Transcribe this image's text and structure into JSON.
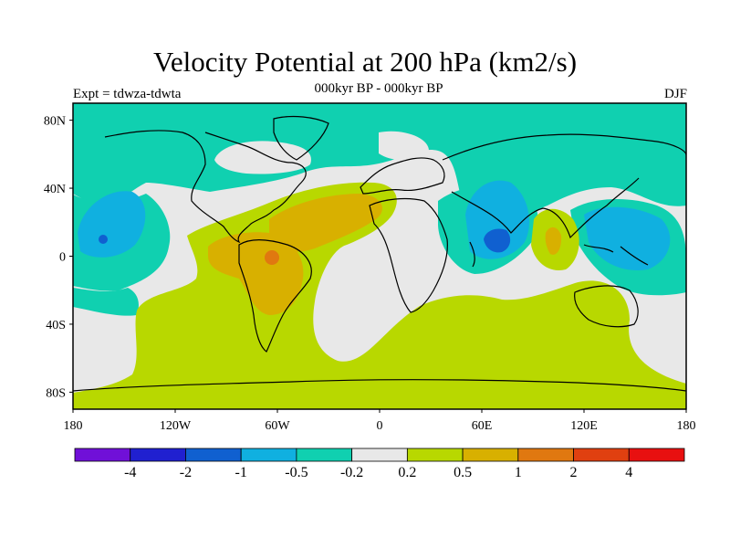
{
  "title": "Velocity Potential at 200 hPa (km2/s)",
  "subtitle": "000kyr BP - 000kyr BP",
  "expt_label": "Expt = tdwza-tdwta",
  "season": "DJF",
  "map": {
    "projection": "equirectangular",
    "lon_range": [
      -180,
      180
    ],
    "lat_range": [
      -90,
      90
    ],
    "y_ticks": [
      "80N",
      "40N",
      "0",
      "40S",
      "80S"
    ],
    "x_ticks": [
      "180",
      "120W",
      "60W",
      "0",
      "60E",
      "120E",
      "180"
    ]
  },
  "colorbar": {
    "colors": [
      "#7010d8",
      "#2020d0",
      "#1060d0",
      "#10b0e0",
      "#10d0b0",
      "#e8e8e8",
      "#b8d800",
      "#d8b000",
      "#e07810",
      "#e04010",
      "#e81010"
    ],
    "labels": [
      "-4",
      "-2",
      "-1",
      "-0.5",
      "-0.2",
      "0.2",
      "0.5",
      "1",
      "2",
      "4"
    ]
  },
  "palette": {
    "neg_weak": "#10d0b0",
    "neg_mid": "#10b0e0",
    "neg_strong": "#1060d0",
    "neutral": "#e8e8e8",
    "pos_weak": "#b8d800",
    "pos_mid": "#d8b000",
    "pos_strong": "#e07810"
  }
}
